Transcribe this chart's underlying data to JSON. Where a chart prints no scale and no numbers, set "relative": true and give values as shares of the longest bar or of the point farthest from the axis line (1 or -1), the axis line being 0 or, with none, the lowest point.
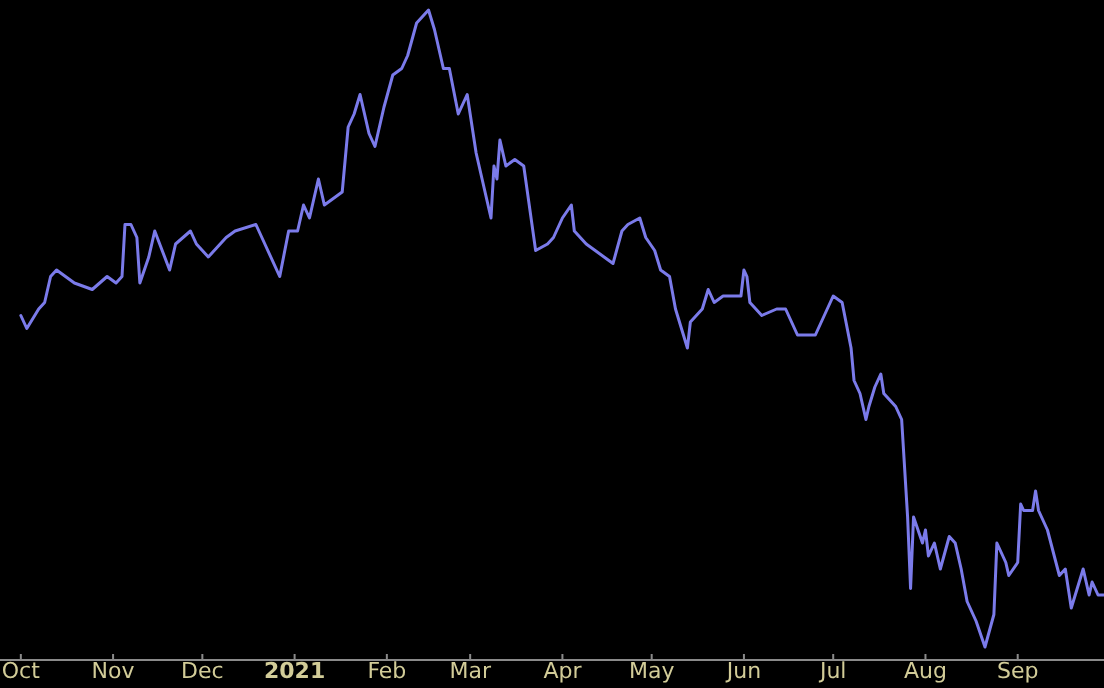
{
  "chart_data": {
    "type": "line",
    "relative": true,
    "xlim": [
      "2020-09-24",
      "2021-09-30"
    ],
    "xticks": [
      {
        "value": "2020-10-01",
        "label": "Oct"
      },
      {
        "value": "2020-11-01",
        "label": "Nov"
      },
      {
        "value": "2020-12-01",
        "label": "Dec"
      },
      {
        "value": "2021-01-01",
        "label": "2021"
      },
      {
        "value": "2021-02-01",
        "label": "Feb"
      },
      {
        "value": "2021-03-01",
        "label": "Mar"
      },
      {
        "value": "2021-04-01",
        "label": "Apr"
      },
      {
        "value": "2021-05-01",
        "label": "May"
      },
      {
        "value": "2021-06-01",
        "label": "Jun"
      },
      {
        "value": "2021-07-01",
        "label": "Jul"
      },
      {
        "value": "2021-08-01",
        "label": "Aug"
      },
      {
        "value": "2021-09-01",
        "label": "Sep"
      }
    ],
    "grid": false,
    "tick_labels": "x",
    "series": [
      {
        "color": "#7b7bea",
        "x": [
          "2020-10-01",
          "2020-10-03",
          "2020-10-07",
          "2020-10-09",
          "2020-10-11",
          "2020-10-13",
          "2020-10-19",
          "2020-10-25",
          "2020-10-30",
          "2020-11-02",
          "2020-11-04",
          "2020-11-05",
          "2020-11-07",
          "2020-11-09",
          "2020-11-10",
          "2020-11-13",
          "2020-11-15",
          "2020-11-20",
          "2020-11-22",
          "2020-11-27",
          "2020-11-29",
          "2020-12-03",
          "2020-12-05",
          "2020-12-09",
          "2020-12-12",
          "2020-12-19",
          "2020-12-22",
          "2020-12-27",
          "2020-12-30",
          "2021-01-02",
          "2021-01-04",
          "2021-01-06",
          "2021-01-09",
          "2021-01-11",
          "2021-01-17",
          "2021-01-19",
          "2021-01-21",
          "2021-01-23",
          "2021-01-26",
          "2021-01-28",
          "2021-01-31",
          "2021-02-03",
          "2021-02-06",
          "2021-02-08",
          "2021-02-11",
          "2021-02-13",
          "2021-02-15",
          "2021-02-17",
          "2021-02-20",
          "2021-02-22",
          "2021-02-25",
          "2021-02-28",
          "2021-03-03",
          "2021-03-05",
          "2021-03-08",
          "2021-03-09",
          "2021-03-10",
          "2021-03-11",
          "2021-03-13",
          "2021-03-16",
          "2021-03-19",
          "2021-03-23",
          "2021-03-27",
          "2021-03-29",
          "2021-04-01",
          "2021-04-04",
          "2021-04-05",
          "2021-04-09",
          "2021-04-15",
          "2021-04-18",
          "2021-04-21",
          "2021-04-23",
          "2021-04-27",
          "2021-04-29",
          "2021-05-02",
          "2021-05-04",
          "2021-05-07",
          "2021-05-09",
          "2021-05-13",
          "2021-05-14",
          "2021-05-18",
          "2021-05-20",
          "2021-05-22",
          "2021-05-25",
          "2021-05-31",
          "2021-06-01",
          "2021-06-02",
          "2021-06-03",
          "2021-06-07",
          "2021-06-12",
          "2021-06-15",
          "2021-06-17",
          "2021-06-19",
          "2021-06-23",
          "2021-06-25",
          "2021-06-28",
          "2021-07-01",
          "2021-07-04",
          "2021-07-07",
          "2021-07-08",
          "2021-07-10",
          "2021-07-12",
          "2021-07-13",
          "2021-07-15",
          "2021-07-17",
          "2021-07-18",
          "2021-07-22",
          "2021-07-24",
          "2021-07-26",
          "2021-07-27",
          "2021-07-28",
          "2021-07-31",
          "2021-08-01",
          "2021-08-02",
          "2021-08-04",
          "2021-08-06",
          "2021-08-09",
          "2021-08-11",
          "2021-08-13",
          "2021-08-15",
          "2021-08-18",
          "2021-08-21",
          "2021-08-24",
          "2021-08-25",
          "2021-08-28",
          "2021-08-29",
          "2021-09-01",
          "2021-09-02",
          "2021-09-03",
          "2021-09-06",
          "2021-09-07",
          "2021-09-08",
          "2021-09-11",
          "2021-09-15",
          "2021-09-17",
          "2021-09-19",
          "2021-09-21",
          "2021-09-23",
          "2021-09-25",
          "2021-09-26",
          "2021-09-28",
          "2021-09-30"
        ],
        "values": [
          0.53,
          0.51,
          0.54,
          0.55,
          0.59,
          0.6,
          0.58,
          0.57,
          0.59,
          0.58,
          0.59,
          0.67,
          0.67,
          0.65,
          0.58,
          0.62,
          0.66,
          0.6,
          0.64,
          0.66,
          0.64,
          0.62,
          0.63,
          0.65,
          0.66,
          0.67,
          0.64,
          0.59,
          0.66,
          0.66,
          0.7,
          0.68,
          0.74,
          0.7,
          0.72,
          0.82,
          0.84,
          0.87,
          0.81,
          0.79,
          0.85,
          0.9,
          0.91,
          0.93,
          0.98,
          0.99,
          1,
          0.97,
          0.91,
          0.91,
          0.84,
          0.87,
          0.78,
          0.74,
          0.68,
          0.76,
          0.74,
          0.8,
          0.76,
          0.77,
          0.76,
          0.63,
          0.64,
          0.65,
          0.68,
          0.7,
          0.66,
          0.64,
          0.62,
          0.61,
          0.66,
          0.67,
          0.68,
          0.65,
          0.63,
          0.6,
          0.59,
          0.54,
          0.48,
          0.52,
          0.54,
          0.57,
          0.55,
          0.56,
          0.56,
          0.6,
          0.59,
          0.55,
          0.53,
          0.54,
          0.54,
          0.52,
          0.5,
          0.5,
          0.5,
          0.53,
          0.56,
          0.55,
          0.48,
          0.43,
          0.41,
          0.37,
          0.39,
          0.42,
          0.44,
          0.41,
          0.39,
          0.37,
          0.22,
          0.11,
          0.22,
          0.18,
          0.2,
          0.16,
          0.18,
          0.14,
          0.19,
          0.18,
          0.14,
          0.09,
          0.06,
          0.02,
          0.07,
          0.18,
          0.15,
          0.13,
          0.15,
          0.24,
          0.23,
          0.23,
          0.26,
          0.23,
          0.2,
          0.13,
          0.14,
          0.08,
          0.11,
          0.14,
          0.1,
          0.12,
          0.1,
          0.1
        ]
      }
    ]
  }
}
